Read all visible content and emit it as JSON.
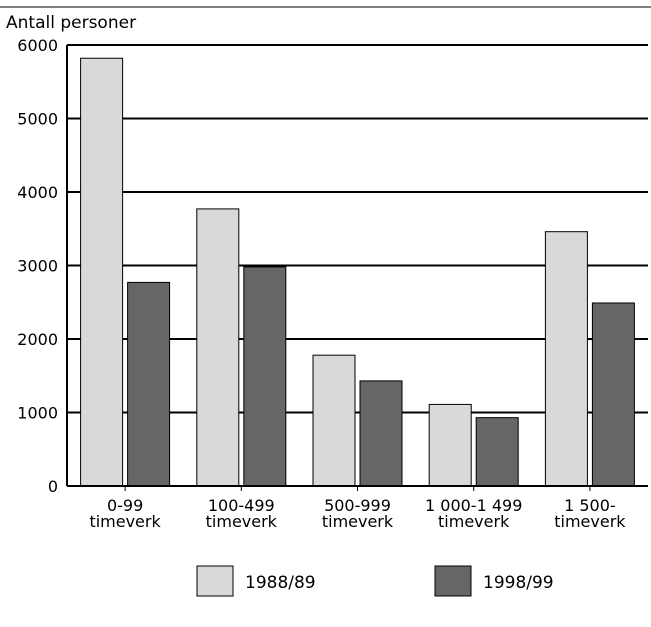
{
  "chart_data": {
    "type": "bar",
    "title": "",
    "ylabel": "Antall personer",
    "xlabel": "",
    "ylim": [
      0,
      6000
    ],
    "yticks": [
      0,
      1000,
      2000,
      3000,
      4000,
      5000,
      6000
    ],
    "grid": true,
    "legend_position": "bottom",
    "categories": [
      [
        "0-99",
        "timeverk"
      ],
      [
        "100-499",
        "timeverk"
      ],
      [
        "500-999",
        "timeverk"
      ],
      [
        "1 000-1 499",
        "timeverk"
      ],
      [
        "1 500-",
        "timeverk"
      ]
    ],
    "series": [
      {
        "name": "1988/89",
        "color": "#d9d9d9",
        "values": [
          5820,
          3770,
          1780,
          1110,
          3460
        ]
      },
      {
        "name": "1998/99",
        "color": "#666666",
        "values": [
          2770,
          2980,
          1430,
          930,
          2490
        ]
      }
    ]
  }
}
